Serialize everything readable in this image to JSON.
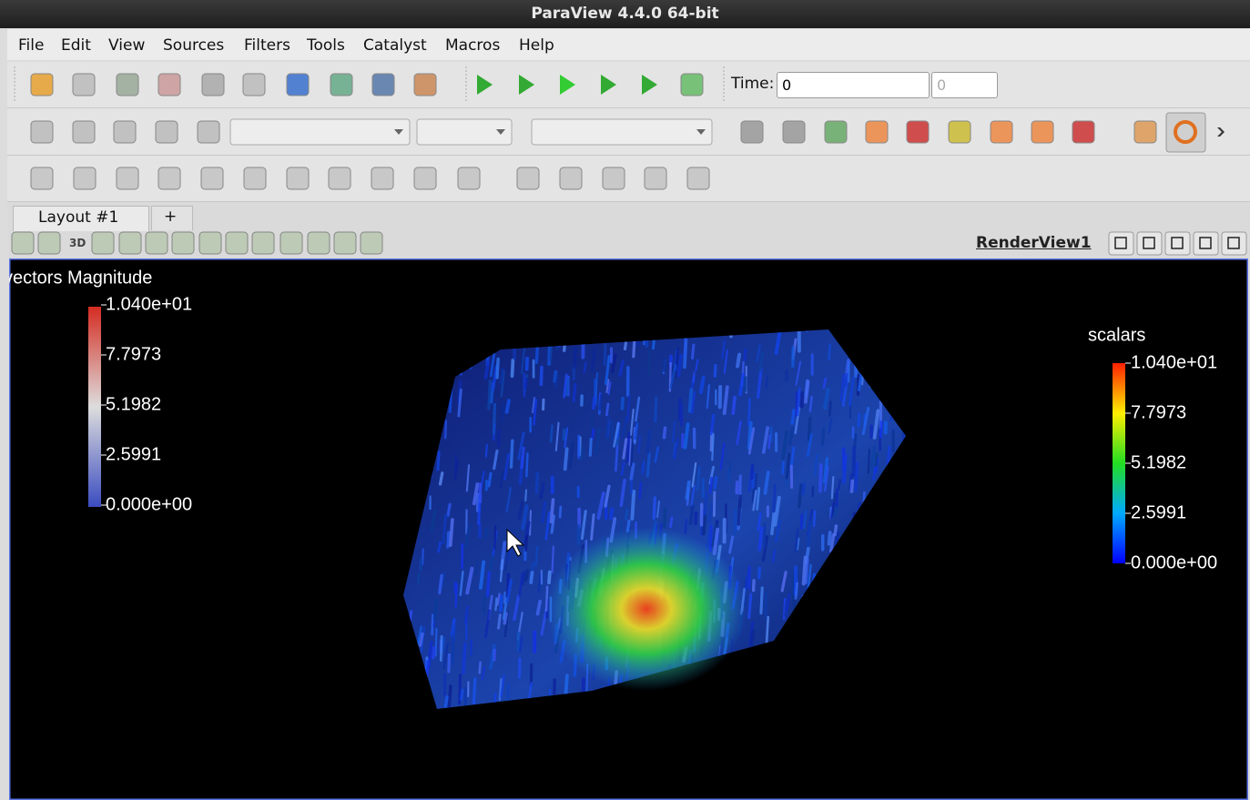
{
  "window": {
    "title": "ParaView 4.4.0 64-bit"
  },
  "menu": [
    "File",
    "Edit",
    "View",
    "Sources",
    "Filters",
    "Tools",
    "Catalyst",
    "Macros",
    "Help"
  ],
  "toolbar": {
    "time_label": "Time:",
    "time_value": "0",
    "time_index": "0"
  },
  "tabs": {
    "layout": "Layout #1",
    "add": "+"
  },
  "view_toolbar": {
    "mode": "3D",
    "view_name": "RenderView1"
  },
  "render_view": {
    "legends": [
      {
        "title": "vectors Magnitude",
        "labels": [
          "1.040e+01",
          "7.7973",
          "5.1982",
          "2.5991",
          "0.000e+00"
        ]
      },
      {
        "title": "scalars",
        "labels": [
          "1.040e+01",
          "7.7973",
          "5.1982",
          "2.5991",
          "0.000e+00"
        ]
      }
    ]
  }
}
